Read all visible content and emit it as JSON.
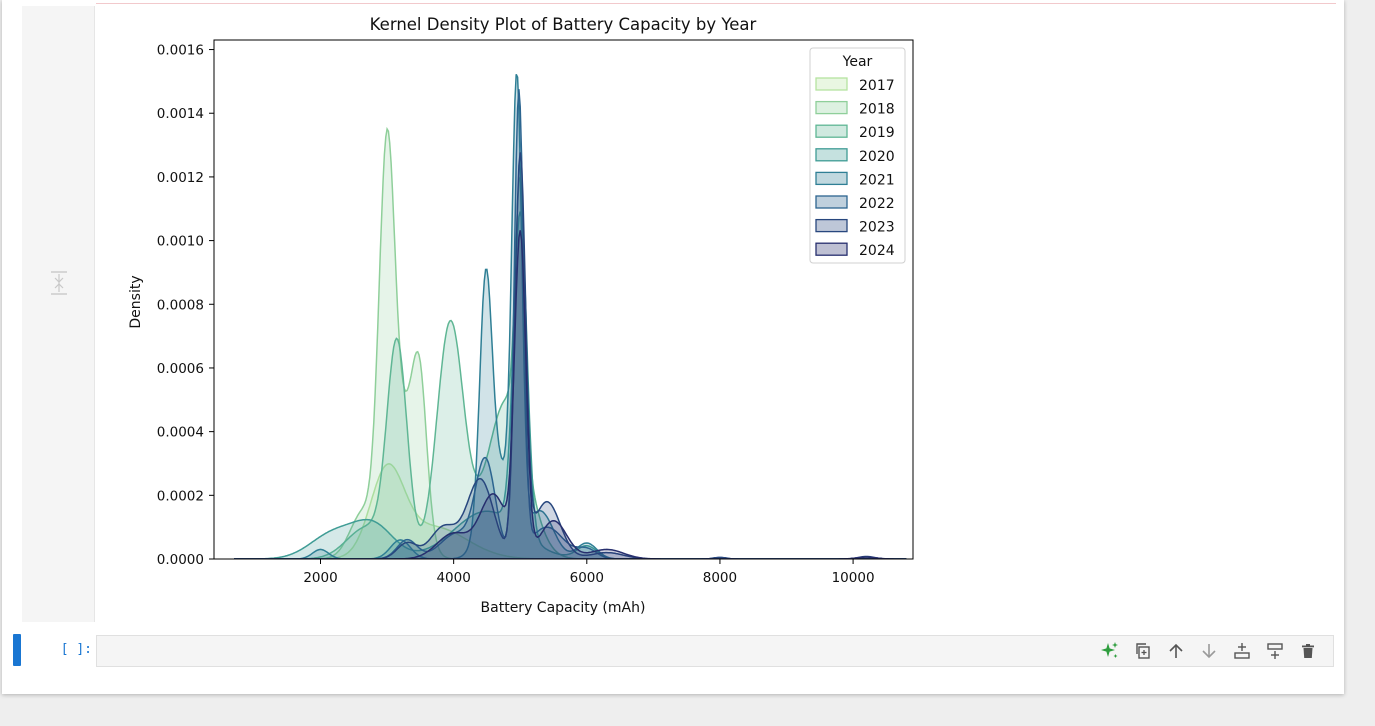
{
  "cell_output": {
    "chart_data": {
      "type": "area",
      "title": "Kernel Density Plot of Battery Capacity by Year",
      "xlabel": "Battery Capacity (mAh)",
      "ylabel": "Density",
      "xlim": [
        400,
        10900
      ],
      "ylim": [
        0,
        0.00163
      ],
      "xticks": [
        2000,
        4000,
        6000,
        8000,
        10000
      ],
      "xtick_labels": [
        "2000",
        "4000",
        "6000",
        "8000",
        "10000"
      ],
      "yticks": [
        0,
        0.0002,
        0.0004,
        0.0006,
        0.0008,
        0.001,
        0.0012,
        0.0014,
        0.0016
      ],
      "ytick_labels": [
        "0.0000",
        "0.0002",
        "0.0004",
        "0.0006",
        "0.0008",
        "0.0010",
        "0.0012",
        "0.0014",
        "0.0016"
      ],
      "grid": false,
      "legend_title": "Year",
      "legend_placement": "top-right",
      "series": [
        {
          "name": "2017",
          "color": "#b5e3a0",
          "components": [
            [
              3000,
              250,
              0.00026
            ],
            [
              3700,
              500,
              0.0001
            ]
          ]
        },
        {
          "name": "2018",
          "color": "#8fcf9a",
          "components": [
            [
              3000,
              120,
              0.00125
            ],
            [
              3350,
              180,
              0.00045
            ],
            [
              3500,
              100,
              0.0003
            ],
            [
              2650,
              200,
              0.00015
            ]
          ]
        },
        {
          "name": "2019",
          "color": "#5fb694",
          "components": [
            [
              3150,
              150,
              0.00066
            ],
            [
              3950,
              200,
              0.00074
            ],
            [
              4800,
              300,
              0.0005
            ],
            [
              2700,
              300,
              0.0001
            ],
            [
              5000,
              70,
              0.0008
            ]
          ]
        },
        {
          "name": "2020",
          "color": "#3f9c95",
          "components": [
            [
              2200,
              350,
              8e-05
            ],
            [
              2800,
              300,
              0.0001
            ],
            [
              4500,
              500,
              0.00015
            ],
            [
              5000,
              100,
              0.001
            ],
            [
              6000,
              150,
              4e-05
            ]
          ]
        },
        {
          "name": "2021",
          "color": "#2f7f95",
          "components": [
            [
              2000,
              120,
              3e-05
            ],
            [
              3200,
              150,
              6e-05
            ],
            [
              4480,
              90,
              0.0007
            ],
            [
              4650,
              200,
              0.0003
            ],
            [
              4950,
              75,
              0.0014
            ],
            [
              5300,
              200,
              0.00015
            ],
            [
              6000,
              150,
              5e-05
            ]
          ]
        },
        {
          "name": "2022",
          "color": "#2c6590",
          "components": [
            [
              3300,
              150,
              6e-05
            ],
            [
              4050,
              250,
              8e-05
            ],
            [
              4480,
              150,
              0.0003
            ],
            [
              4980,
              70,
              0.00145
            ],
            [
              5400,
              250,
              0.0001
            ],
            [
              6000,
              150,
              3e-05
            ]
          ]
        },
        {
          "name": "2023",
          "color": "#28477e",
          "components": [
            [
              3300,
              150,
              5e-05
            ],
            [
              3850,
              200,
              0.0001
            ],
            [
              4400,
              200,
              0.00025
            ],
            [
              5000,
              80,
              0.00125
            ],
            [
              5400,
              200,
              0.00018
            ],
            [
              6300,
              250,
              2e-05
            ],
            [
              8000,
              100,
              5e-06
            ],
            [
              10200,
              120,
              8e-06
            ]
          ]
        },
        {
          "name": "2024",
          "color": "#272f6e",
          "components": [
            [
              4000,
              250,
              8e-05
            ],
            [
              4600,
              200,
              0.0002
            ],
            [
              5000,
              85,
              0.001
            ],
            [
              5500,
              200,
              0.00012
            ],
            [
              6300,
              250,
              3e-05
            ],
            [
              10200,
              150,
              6e-06
            ]
          ]
        }
      ]
    }
  },
  "input_cell": {
    "prompt": "[ ]:",
    "toolbar": [
      {
        "name": "generate-ai-button",
        "icon": "sparkle-icon"
      },
      {
        "name": "duplicate-cell-button",
        "icon": "copy-icon"
      },
      {
        "name": "move-up-button",
        "icon": "arrow-up-icon"
      },
      {
        "name": "move-down-button",
        "icon": "arrow-down-icon"
      },
      {
        "name": "insert-above-button",
        "icon": "insert-above-icon"
      },
      {
        "name": "insert-below-button",
        "icon": "insert-below-icon"
      },
      {
        "name": "delete-cell-button",
        "icon": "trash-icon"
      }
    ]
  }
}
